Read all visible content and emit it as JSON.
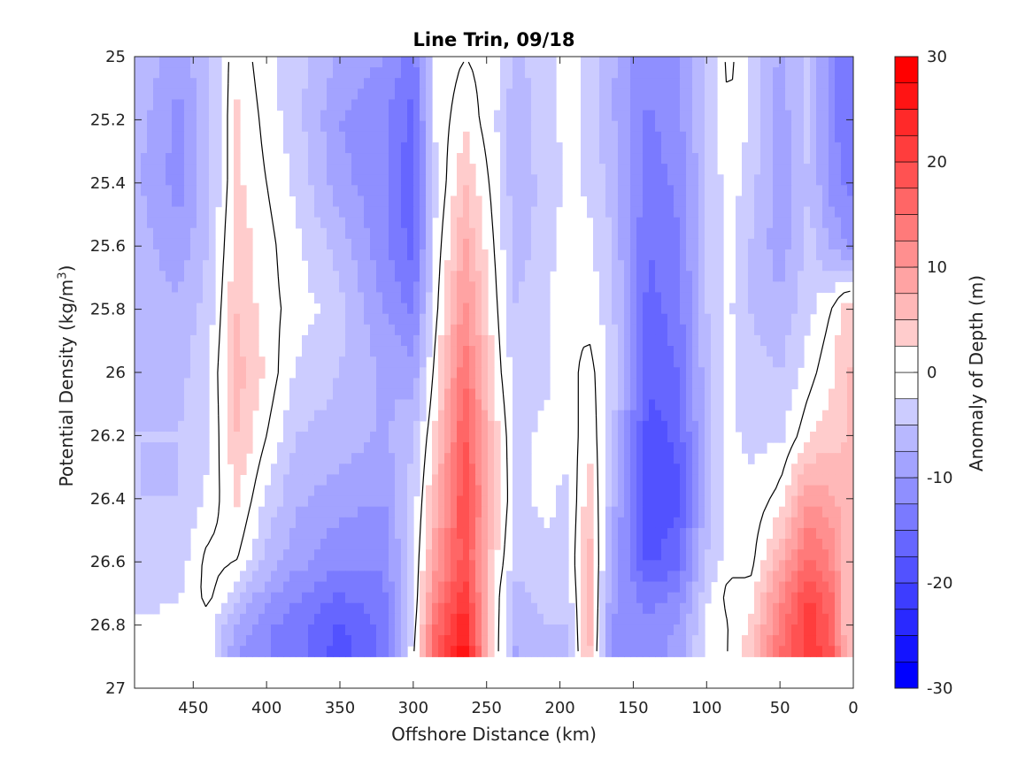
{
  "chart_data": {
    "type": "heatmap",
    "title": "Line Trin, 09/18",
    "xlabel": "Offshore Distance (km)",
    "ylabel": "Potential Density (kg/m",
    "ylabel_unit_sup": "3",
    "ylabel_close": ")",
    "colorbar_label": "Anomaly of Depth (m)",
    "x_axis_reversed": true,
    "xlim": [
      0,
      490
    ],
    "ylim": [
      25,
      27
    ],
    "y_axis_reversed": true,
    "xticks": [
      450,
      400,
      350,
      300,
      250,
      200,
      150,
      100,
      50,
      0
    ],
    "yticks": [
      25,
      25.2,
      25.4,
      25.6,
      25.8,
      26,
      26.2,
      26.4,
      26.6,
      26.8,
      27
    ],
    "ytick_labels": [
      "25",
      "25.2",
      "25.4",
      "25.6",
      "25.8",
      "26",
      "26.2",
      "26.4",
      "26.6",
      "26.8",
      "27"
    ],
    "colorbar_range": [
      -30,
      30
    ],
    "colorbar_ticks": [
      30,
      20,
      10,
      0,
      -10,
      -20,
      -30
    ],
    "colorbar_levels": [
      -30,
      -27.5,
      -25,
      -22.5,
      -20,
      -17.5,
      -15,
      -12.5,
      -10,
      -7.5,
      -5,
      -2.5,
      0,
      2.5,
      5,
      7.5,
      10,
      12.5,
      15,
      17.5,
      20,
      22.5,
      25,
      27.5,
      30
    ],
    "colormap": {
      "negative": "#0000ff",
      "zero": "#ffffff",
      "positive": "#ff0000"
    },
    "data_bottom_density": 26.9,
    "contour_level": 0,
    "anomaly_columns": [
      {
        "x": 490,
        "values": [
          -5,
          -6,
          -7,
          -6,
          -6,
          -5,
          -5,
          -5,
          -5,
          -4,
          -2,
          -1
        ]
      },
      {
        "x": 460,
        "values": [
          -9,
          -11,
          -11,
          -9,
          -7,
          -6,
          -5,
          -5,
          -4,
          -3,
          -1,
          -1
        ]
      },
      {
        "x": 440,
        "values": [
          -5,
          -6,
          -6,
          -5,
          -4,
          -3,
          -3,
          -2,
          1,
          1,
          -1,
          0
        ]
      },
      {
        "x": 420,
        "values": [
          2,
          3,
          3,
          4,
          5,
          6,
          5,
          3,
          0,
          -4,
          -8,
          -10
        ]
      },
      {
        "x": 400,
        "values": [
          -2,
          -1,
          0,
          1,
          1,
          2,
          0,
          -3,
          -6,
          -9,
          -12,
          -12
        ]
      },
      {
        "x": 380,
        "values": [
          -4,
          -4,
          -3,
          -2,
          -1,
          -3,
          -5,
          -7,
          -9,
          -12,
          -14,
          -14
        ]
      },
      {
        "x": 350,
        "values": [
          -8,
          -10,
          -9,
          -6,
          -4,
          -5,
          -6,
          -9,
          -12,
          -15,
          -18,
          -19
        ]
      },
      {
        "x": 320,
        "values": [
          -10,
          -12,
          -12,
          -12,
          -10,
          -8,
          -8,
          -10,
          -12,
          -13,
          -14,
          -14
        ]
      },
      {
        "x": 300,
        "values": [
          -14,
          -16,
          -17,
          -16,
          -13,
          -9,
          -5,
          -4,
          -3,
          -3,
          -2,
          -1
        ]
      },
      {
        "x": 285,
        "values": [
          -2,
          -2,
          -3,
          -2,
          -1,
          1,
          3,
          6,
          9,
          12,
          15,
          18
        ]
      },
      {
        "x": 265,
        "values": [
          0,
          2,
          5,
          8,
          11,
          15,
          18,
          20,
          19,
          22,
          25,
          27
        ]
      },
      {
        "x": 245,
        "values": [
          -1,
          -2,
          -1,
          0,
          1,
          2,
          4,
          5,
          3,
          2,
          2,
          2
        ]
      },
      {
        "x": 230,
        "values": [
          -6,
          -7,
          -7,
          -6,
          -5,
          -4,
          -3,
          -3,
          -4,
          -6,
          -7,
          -8
        ]
      },
      {
        "x": 210,
        "values": [
          -3,
          -3,
          -4,
          -4,
          -3,
          -3,
          -2,
          -2,
          -3,
          -4,
          -5,
          -6
        ]
      },
      {
        "x": 195,
        "values": [
          -2,
          -2,
          -2,
          -1,
          0,
          -1,
          -2,
          -3,
          -3,
          -4,
          -5,
          -5
        ]
      },
      {
        "x": 180,
        "values": [
          -3,
          -3,
          -3,
          -2,
          -1,
          1,
          2,
          4,
          6,
          6,
          6,
          5
        ]
      },
      {
        "x": 165,
        "values": [
          -7,
          -7,
          -6,
          -5,
          -4,
          -3,
          -4,
          -6,
          -8,
          -9,
          -10,
          -10
        ]
      },
      {
        "x": 140,
        "values": [
          -12,
          -13,
          -14,
          -15,
          -16,
          -17,
          -19,
          -20,
          -18,
          -14,
          -12,
          -11
        ]
      },
      {
        "x": 120,
        "values": [
          -10,
          -11,
          -12,
          -13,
          -14,
          -15,
          -17,
          -18,
          -16,
          -12,
          -10,
          -9
        ]
      },
      {
        "x": 100,
        "values": [
          -5,
          -5,
          -5,
          -5,
          -5,
          -6,
          -6,
          -6,
          -5,
          -3,
          -2,
          -2
        ]
      },
      {
        "x": 85,
        "values": [
          1,
          0,
          -1,
          -1,
          -2,
          -2,
          -2,
          -2,
          -1,
          1,
          0,
          0
        ]
      },
      {
        "x": 70,
        "values": [
          -3,
          -3,
          -4,
          -5,
          -5,
          -4,
          -3,
          -2,
          -1,
          1,
          3,
          5
        ]
      },
      {
        "x": 50,
        "values": [
          -8,
          -9,
          -9,
          -9,
          -7,
          -5,
          -3,
          1,
          7,
          11,
          13,
          15
        ]
      },
      {
        "x": 30,
        "values": [
          -4,
          -4,
          -5,
          -4,
          -3,
          -1,
          2,
          10,
          16,
          20,
          22,
          22
        ]
      },
      {
        "x": 15,
        "values": [
          -12,
          -12,
          -11,
          -8,
          0,
          2,
          4,
          8,
          12,
          15,
          17,
          18
        ]
      },
      {
        "x": 5,
        "values": [
          -15,
          -14,
          -13,
          -10,
          4,
          5,
          5,
          6,
          6,
          6,
          6,
          6
        ]
      }
    ],
    "anomaly_densities": [
      25.0,
      25.2,
      25.4,
      25.6,
      25.8,
      26.0,
      26.2,
      26.4,
      26.6,
      26.7,
      26.8,
      26.9
    ]
  }
}
